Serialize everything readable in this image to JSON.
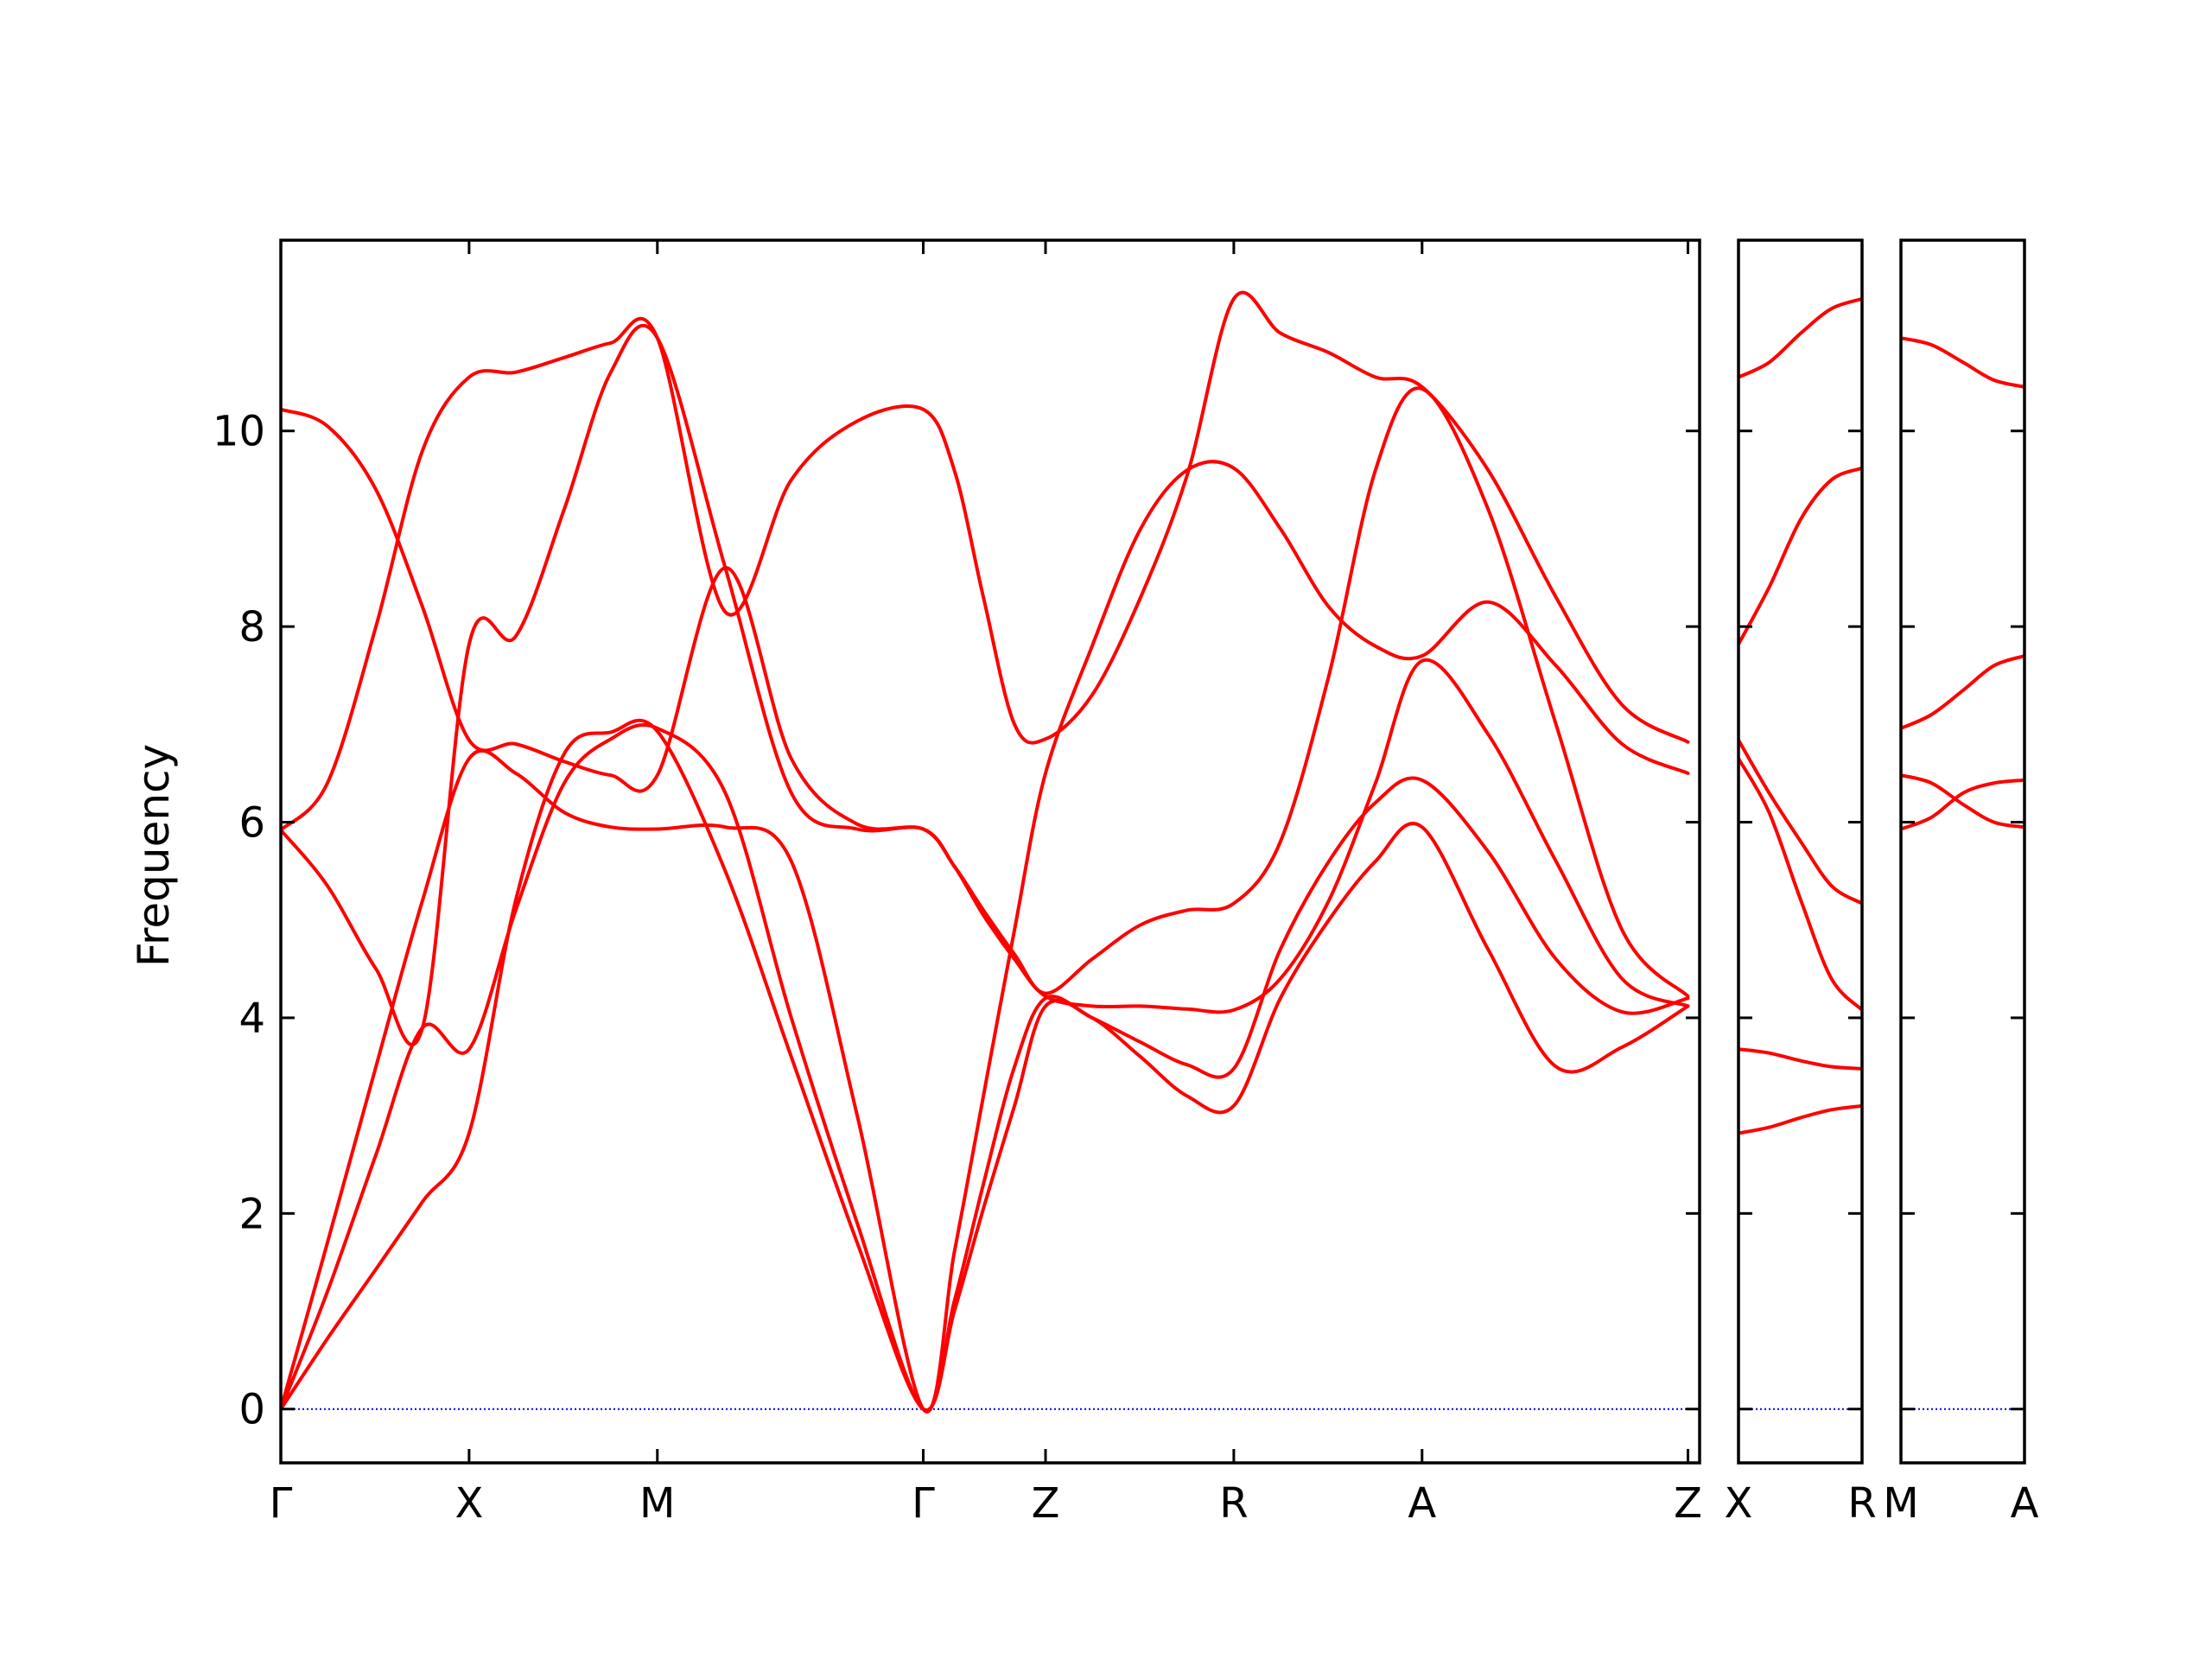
{
  "chart_data": {
    "type": "line",
    "title": "",
    "ylabel": "Frequency",
    "ylim": [
      -0.55,
      11.95
    ],
    "yticks": [
      0,
      2,
      4,
      6,
      8,
      10
    ],
    "grid": false,
    "legend": "none",
    "colors": {
      "bands": "#ff0000",
      "zero_line": "#0000ff",
      "axes": "#000000"
    },
    "panels": [
      {
        "xlim": [
          0,
          7.31
        ],
        "xticks": [
          {
            "x": 0,
            "label": "Γ"
          },
          {
            "x": 0.97,
            "label": "X"
          },
          {
            "x": 1.94,
            "label": "M"
          },
          {
            "x": 3.31,
            "label": "Γ"
          },
          {
            "x": 3.94,
            "label": "Z"
          },
          {
            "x": 4.91,
            "label": "R"
          },
          {
            "x": 5.88,
            "label": "A"
          },
          {
            "x": 7.25,
            "label": "Z"
          }
        ],
        "series": [
          {
            "x": [
              0,
              0.24,
              0.49,
              0.73,
              0.97,
              1.21,
              1.46,
              1.7,
              1.94,
              2.29,
              2.63,
              2.97,
              3.31,
              3.47,
              3.62,
              3.78,
              3.94,
              4.18,
              4.43,
              4.67,
              4.91,
              5.15,
              5.4,
              5.64,
              5.88,
              6.22,
              6.57,
              6.91,
              7.25
            ],
            "y": [
              0,
              0.72,
              1.43,
              2.12,
              2.82,
              5.2,
              6.7,
              6.92,
              6.93,
              5.5,
              3.6,
              1.7,
              0,
              1.0,
              2.05,
              3.1,
              4.12,
              4.0,
              3.6,
              3.2,
              3.1,
              4.2,
              5.0,
              5.6,
              5.95,
              4.7,
              3.5,
              3.7,
              4.12
            ]
          },
          {
            "x": [
              0,
              0.24,
              0.49,
              0.73,
              0.97,
              1.21,
              1.46,
              1.7,
              1.94,
              2.29,
              2.63,
              2.97,
              3.31,
              3.47,
              3.62,
              3.78,
              3.94,
              4.18,
              4.43,
              4.67,
              4.91,
              5.15,
              5.4,
              5.64,
              5.88,
              6.22,
              6.57,
              6.91,
              7.25
            ],
            "y": [
              0,
              1.2,
              2.6,
              3.9,
              3.68,
              5.1,
              6.4,
              6.85,
              6.96,
              6.3,
              4.0,
              1.9,
              0,
              1.1,
              2.3,
              3.5,
              4.2,
              4.0,
              3.75,
              3.52,
              3.48,
              4.7,
              5.6,
              6.2,
              6.43,
              5.7,
              4.6,
              4.06,
              4.2
            ]
          },
          {
            "x": [
              0,
              0.24,
              0.49,
              0.73,
              0.97,
              1.21,
              1.46,
              1.7,
              1.94,
              2.29,
              2.63,
              2.97,
              3.31,
              3.47,
              3.62,
              3.78,
              3.94,
              4.18,
              4.43,
              4.67,
              4.91,
              5.15,
              5.4,
              5.64,
              5.88,
              6.22,
              6.57,
              6.91,
              7.25
            ],
            "y": [
              0,
              1.7,
              3.5,
              5.2,
              6.65,
              6.5,
              6.1,
              5.95,
              5.93,
              5.95,
              5.6,
              3.0,
              0,
              1.6,
              3.2,
              4.9,
              6.5,
              7.8,
              9.0,
              9.6,
              9.62,
              9.0,
              8.2,
              7.8,
              7.7,
              8.25,
              7.6,
              6.8,
              6.5
            ]
          },
          {
            "x": [
              0,
              0.24,
              0.49,
              0.73,
              0.97,
              1.21,
              1.46,
              1.7,
              1.94,
              2.29,
              2.63,
              2.97,
              3.31,
              3.47,
              3.62,
              3.78,
              3.94,
              4.18,
              4.43,
              4.67,
              4.91,
              5.15,
              5.4,
              5.64,
              5.88,
              6.22,
              6.57,
              6.91,
              7.25
            ],
            "y": [
              5.92,
              5.35,
              4.5,
              3.9,
              7.82,
              7.9,
              9.2,
              10.6,
              10.95,
              8.6,
              6.3,
              5.93,
              5.93,
              5.55,
              5.05,
              4.6,
              4.22,
              4.12,
              4.12,
              4.09,
              4.08,
              4.4,
              5.2,
              6.4,
              7.65,
              6.9,
              5.6,
              4.4,
              4.12
            ]
          },
          {
            "x": [
              0,
              0.24,
              0.49,
              0.73,
              0.97,
              1.21,
              1.46,
              1.7,
              1.94,
              2.29,
              2.63,
              2.97,
              3.31,
              3.47,
              3.62,
              3.78,
              3.94,
              4.18,
              4.43,
              4.67,
              4.91,
              5.15,
              5.4,
              5.64,
              5.88,
              6.22,
              6.57,
              6.91,
              7.25
            ],
            "y": [
              5.92,
              6.4,
              8.0,
              9.8,
              10.55,
              10.6,
              10.75,
              10.9,
              10.95,
              8.15,
              9.5,
              10.1,
              10.22,
              9.6,
              8.3,
              7.0,
              6.85,
              7.3,
              8.3,
              9.55,
              11.35,
              11.0,
              10.8,
              10.55,
              10.45,
              9.6,
              8.3,
              7.2,
              6.82
            ]
          },
          {
            "x": [
              0,
              0.24,
              0.49,
              0.73,
              0.97,
              1.21,
              1.46,
              1.7,
              1.94,
              2.29,
              2.63,
              2.97,
              3.31,
              3.47,
              3.62,
              3.78,
              3.94,
              4.18,
              4.43,
              4.67,
              4.91,
              5.15,
              5.4,
              5.64,
              5.88,
              6.22,
              6.57,
              6.91,
              7.25
            ],
            "y": [
              10.22,
              10.05,
              9.4,
              8.2,
              6.84,
              6.8,
              6.62,
              6.48,
              6.48,
              8.6,
              6.65,
              5.98,
              5.93,
              5.55,
              5.1,
              4.65,
              4.25,
              4.6,
              4.95,
              5.1,
              5.17,
              5.8,
              7.5,
              9.6,
              10.43,
              9.2,
              7.0,
              4.9,
              4.22
            ]
          }
        ]
      },
      {
        "xlim": [
          0,
          0.97
        ],
        "xticks": [
          {
            "x": 0,
            "label": "X"
          },
          {
            "x": 0.97,
            "label": "R"
          }
        ],
        "series": [
          {
            "x": [
              0,
              0.24,
              0.49,
              0.73,
              0.97
            ],
            "y": [
              2.82,
              2.88,
              2.98,
              3.06,
              3.1
            ]
          },
          {
            "x": [
              0,
              0.24,
              0.49,
              0.73,
              0.97
            ],
            "y": [
              3.68,
              3.64,
              3.56,
              3.5,
              3.48
            ]
          },
          {
            "x": [
              0,
              0.24,
              0.49,
              0.73,
              0.97
            ],
            "y": [
              6.65,
              6.1,
              5.2,
              4.4,
              4.08
            ]
          },
          {
            "x": [
              0,
              0.24,
              0.49,
              0.73,
              0.97
            ],
            "y": [
              6.84,
              6.3,
              5.8,
              5.35,
              5.17
            ]
          },
          {
            "x": [
              0,
              0.24,
              0.49,
              0.73,
              0.97
            ],
            "y": [
              7.82,
              8.4,
              9.1,
              9.5,
              9.62
            ]
          },
          {
            "x": [
              0,
              0.24,
              0.49,
              0.73,
              0.97
            ],
            "y": [
              10.55,
              10.7,
              11.0,
              11.25,
              11.35
            ]
          }
        ]
      },
      {
        "xlim": [
          0,
          0.97
        ],
        "xticks": [
          {
            "x": 0,
            "label": "M"
          },
          {
            "x": 0.97,
            "label": "A"
          }
        ],
        "series": [
          {
            "x": [
              0,
              0.24,
              0.49,
              0.73,
              0.97
            ],
            "y": [
              5.93,
              6.05,
              6.3,
              6.4,
              6.43
            ]
          },
          {
            "x": [
              0,
              0.24,
              0.49,
              0.73,
              0.97
            ],
            "y": [
              6.48,
              6.4,
              6.18,
              6.0,
              5.95
            ]
          },
          {
            "x": [
              0,
              0.24,
              0.49,
              0.73,
              0.97
            ],
            "y": [
              6.96,
              7.1,
              7.35,
              7.6,
              7.7
            ]
          },
          {
            "x": [
              0,
              0.24,
              0.49,
              0.73,
              0.97
            ],
            "y": [
              10.95,
              10.88,
              10.7,
              10.52,
              10.45
            ]
          }
        ]
      }
    ]
  }
}
